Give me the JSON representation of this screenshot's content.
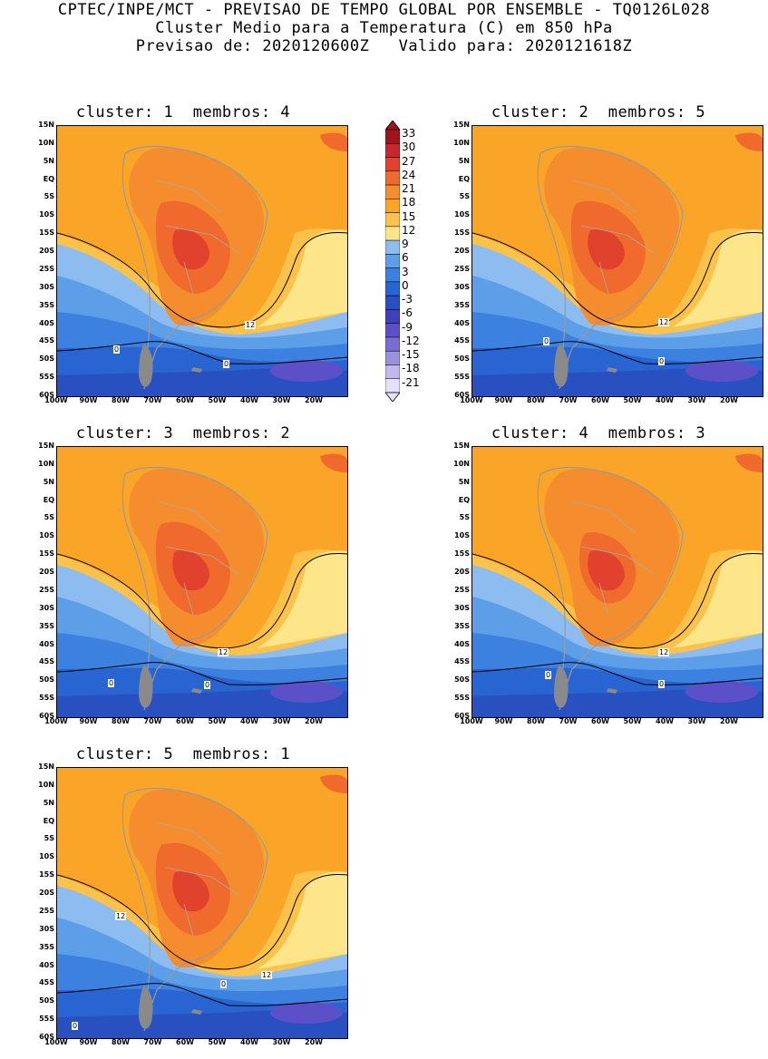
{
  "header": {
    "line1": "CPTEC/INPE/MCT - PREVISAO DE TEMPO GLOBAL POR ENSEMBLE - TQ0126L028",
    "line2": "Cluster Medio para a Temperatura (C) em 850 hPa",
    "line3": "Previsao de: 2020120600Z   Valido para: 2020121618Z"
  },
  "panels": [
    {
      "title": "cluster: 1  membros: 4",
      "contour_labels": [
        "12",
        "0",
        "0"
      ]
    },
    {
      "title": "cluster: 2  membros: 5",
      "contour_labels": [
        "12",
        "0",
        "0"
      ]
    },
    {
      "title": "cluster: 3  membros: 2",
      "contour_labels": [
        "12",
        "0",
        "0"
      ]
    },
    {
      "title": "cluster: 4  membros: 3",
      "contour_labels": [
        "12",
        "0",
        "0"
      ]
    },
    {
      "title": "cluster: 5  membros: 1",
      "contour_labels": [
        "12",
        "12",
        "0",
        "0"
      ]
    }
  ],
  "lat_ticks": [
    "15N",
    "10N",
    "5N",
    "EQ",
    "5S",
    "10S",
    "15S",
    "20S",
    "25S",
    "30S",
    "35S",
    "40S",
    "45S",
    "50S",
    "55S",
    "60S"
  ],
  "lon_ticks": [
    "100W",
    "90W",
    "80W",
    "70W",
    "60W",
    "50W",
    "40W",
    "30W",
    "20W"
  ],
  "colorbar": {
    "labels": [
      "33",
      "30",
      "27",
      "24",
      "21",
      "18",
      "15",
      "12",
      "9",
      "6",
      "3",
      "0",
      "-3",
      "-6",
      "-9",
      "-12",
      "-15",
      "-18",
      "-21"
    ],
    "colors": [
      "#a0141e",
      "#c8282d",
      "#e1422d",
      "#f06a2d",
      "#f58c2d",
      "#faa528",
      "#fcc24a",
      "#fde58a",
      "#8cbcf0",
      "#5c9ee8",
      "#3c80e0",
      "#2864d2",
      "#2850c0",
      "#4040b8",
      "#5c50c8",
      "#7a6cd4",
      "#9c90e0",
      "#c2b8ee",
      "#e6e0f8"
    ]
  }
}
